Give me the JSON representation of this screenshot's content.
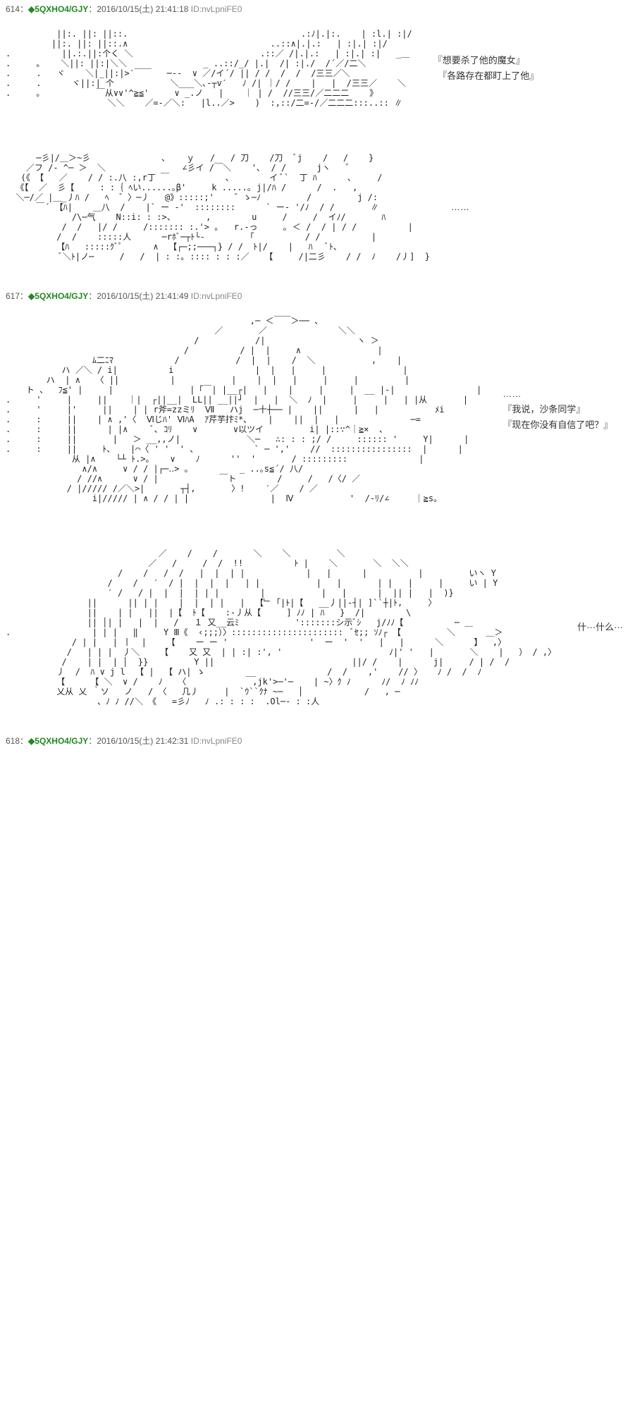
{
  "posts": [
    {
      "num": "614",
      "trip": "◆5QXHO4/GJY",
      "date": "2016/10/15(土) 21:41:18",
      "id": "ID:nvLpniFE0",
      "blocks": [
        {
          "aa": "          ||:. ||: ||::.                                  .:ﾉ|.|:.    | :l.| :|/\n         ||:. ||: ||::.∧                            ..::∧|.|.:   | :|.| :|/\n.          ||.:.||:个く ＼                         .::／ /|.|.:   | :|.| :|   _＿\n.     ｡    ＼||: ||:|＼＼               _ ..::/_/ |.|  /| :|./  /´／/二＼\n.     .   ヾ    ＼|_||:|>′￣￣   ─‐-  ∨ ／/イ´/ || / /  /  /  /三三／＼\n.     .      ヾ||:| 个           ＼___＼､‐┬v′   ﾉ /| ｜/ /    |   |  /三三／    ＼\n.     ｡           ￣从∨∨'^≧≦'     ∨ _.ノ   |    ｜ | /  //三三/／二二二    》\n                    ＼＼    ／=‐／＼:   |l..／>    )  :,::/二=-/／二二二:::..:: ∥\n",
          "dialogue": "『想要杀了他的魔女』\n　『各路存在都盯上了他』"
        },
        {
          "aa": "      ─彡|/＿＞~彡              ､    ｙ   /   / 刀    /刀  ﾞj    /   /    }\n    ／フ /‐ ^─ ＞  ＼               ∠彡イ /￣＼    '､  / /      jヽ   ゛\n   (《 【   ／    / / :.八 :,r丁 ￣           、       イ ﾞ`  丁 ﾊ      ､     /\n  《【  ／  彡【     : :｛ ﾍい......｡β'     k .....｡ j|/ﾊ /      /  .   ,\n  ＼─/／ |＿_丿ﾊ /   ﾍ  ゛〉─丿   @》:::::;'    ゛ゝ─ﾉ         /         j /:\n      ￣´ 【ﾊ|    ＿八  /    |` ー -'  ::::::::      ` ー- '/ﾉ  / /       ∥\n             /\\─气    N::i: : :>、      ,        u     /     /  イﾉ/       ﾊ\n           /  /   |/ /     /::::::: :.'> ｡   r.-っ     ｡ ＜ /  / | / /          |\n          /  /    :::::人      ─rﾎﾞ─┬ﾄ└-        「          / /          |\n          【ﾊ   :::::ｸﾞﾟ      ∧  【┌─;;───┐} / /  ﾄ|/    |   ﾊ   ﾞﾄ、\n           ﾞ＼ﾄ|ノ─     /   /  | : :｡ :::: : : :／   【     /|二彡    / /  ﾉ    /丿]  }\n",
          "dialogue": "……"
        }
      ]
    },
    {
      "num": "617",
      "trip": "◆5QXHO4/GJY",
      "date": "2016/10/15(土) 21:41:49",
      "id": "ID:nvLpniFE0",
      "blocks": [
        {
          "aa": "                                                ,─ ＜￣￣＞── 、\n                                         ／       ／              ＼＼\n                                     /           /|                  ヽ ＞\n                                   /          / |  |     ∧               |\n                 ﾑ二ﾆﾏ            /           /  |  |    /  ＼           ,    |\n           ハ ／＼ / i|          i                |  |   |     |               |\n        ハ  | ∧   〈 ||          |           |    |  |   |     |     |         |\n    ト 、  ﾌ≦' |     |               |「￣| |__┌|   |    |     |     |  __ |‐|                |\n.     '     |     ||    ｜|  ┌||__|  LL|| __||┘  |   |  ＼  ﾉ  |     |     |   | |从       |\n.     '     |'     ||    | | r斧=zzミﾘ  Ⅶ   ハj  ─十┼── |    ||      |   |           ﾒi\n.     :     ||    | ∧ ,'〈  Ⅵじﾊ' ⅥﾊA  ｱ芹芋抃ﾐ*､    |    ||  |   |              ─=\n.     :     ||      | |∧     ﾞ､ ｺﾘ    ∨       ∨以ツイ         i| |::∵^｜≧×  、\n.     :     ||       |   ＞ __,,ノ|             ＼─   ∴: : : ;/ /     :::::: '     Y|      |\n.     :     ||     ﾄ、   |⌒〈 ' '  ' 、           ` ─ ','    //  ::::::::::::::::  |      |\n             从 |∧    └┴ ﾄ.>｡    ∨    ﾉ      ''  '       / :::::::::              |\n               ∧/∧     ∨ / / |┌─‥> ｡          _ ..｡s≦´/ 八/\n              / //∧      ∨ / |            ￣ト        /     /   /〈/ ／\n            / |///// /／＼>|       ┬┤,       〉!    ′／    / ／\n                 i|///// | ∧ / / | |                |  Ⅳ           '  /-ﾘ/∠     ｜≧s。\n",
          "dialogue": "……\n『我说，沙条同学』\n『现在你没有自信了吧？』"
        },
        {
          "aa": "                              ／    /    /       ＼    ＼         ＼\n                            ／   /     /  /  !!          ﾄ |    ＼       ＼  ＼＼\n                      /    /   /  /   |  |  | |            |   |      |          |         いヽ Y\n                    /    /   ′  / |  |  |  |   | |           |   |       | |   |     |     い | Y\n                    ′ /   / |  |  |  | | |        |           |   |      |  || |   |  )}\n                ||      || | |    |  |  | |   |  【﹂「|ﾄ|【   __丿||-┤| ]``┼|ﾄ,     〉\n                ||    | |   ||  |【  ﾄ【    :-丿从【     ] ﾉﾉ | ﾊ   }  /|        \\\n                || │| |   |  |   /   １ 又__云ﾐ           ':::::::シ示ﾞｼ   j/ﾉﾉ【          ─ ＿\n.                | | |   ‖     Y Ⅲ《  ‹;;;）〉::::::::::::::::::::::  ﾞｾ;; ｿﾉ┌ 【         ＼      ＿＞\n             / | |   | 丨  |    【    ー ー '                '  ー  '  '   |   |      ＼      】  ,〉\n            /   | | |  丿＼    【    又 又  | | :| :', '                     ﾉ|' '   |       ＼    |   ） / ,〉\n           /    | |  | │  }}         Y ||                           ||/ /    |      j|     / | /  /\n          丿  /  ﾊ ∨ j l  【 |  【 ハ| ゝ        __              /  /    ,'    // 〉   ﾉ /  /  ﾉ\n          【     【 ＼  ∨ /    ﾉ   〈             ,jk'>─'─    | ~〉ｸ ﾉ      ﾉ/  ﾉ ﾉﾉ\n          乂从 乂 ｀ソ   ノ   / 〈   几丿     |  `ｳ``ｸﾅ ~─   │            /   , ─\n                  、ﾉ ﾉ //＼ 《   =彡ﾉ   ﾉ .: : : :  .Ol─- : :人\n",
          "dialogue": "什···什么···"
        }
      ]
    },
    {
      "num": "618",
      "trip": "◆5QXHO4/GJY",
      "date": "2016/10/15(土) 21:42:31",
      "id": "ID:nvLpniFE0",
      "blocks": []
    }
  ],
  "colors": {
    "trip": "#228822",
    "text": "#333333",
    "id": "#888888",
    "bg": "#ffffff"
  }
}
